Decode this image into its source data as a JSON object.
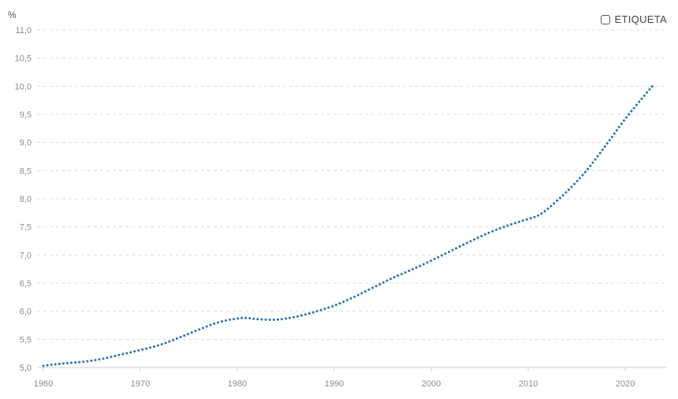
{
  "legend": {
    "label": "ETIQUETA",
    "checked": false
  },
  "chart_data": {
    "type": "line",
    "title": "",
    "ylabel": "%",
    "xlabel": "",
    "xlim": [
      1960,
      2023
    ],
    "ylim": [
      5.0,
      11.0
    ],
    "y_ticks": [
      "5,0",
      "5,5",
      "6,0",
      "6,5",
      "7,0",
      "7,5",
      "8,0",
      "8,5",
      "9,0",
      "9,5",
      "10,0",
      "10,5",
      "11,0"
    ],
    "y_tick_values": [
      5.0,
      5.5,
      6.0,
      6.5,
      7.0,
      7.5,
      8.0,
      8.5,
      9.0,
      9.5,
      10.0,
      10.5,
      11.0
    ],
    "x_ticks": [
      "1960",
      "1970",
      "1980",
      "1990",
      "2000",
      "2010",
      "2020"
    ],
    "x_tick_values": [
      1960,
      1970,
      1980,
      1990,
      2000,
      2010,
      2020
    ],
    "grid": true,
    "line_color": "#2e75b6",
    "series": [
      {
        "x": [
          1960,
          1962,
          1964,
          1966,
          1968,
          1970,
          1972,
          1974,
          1976,
          1978,
          1980,
          1981,
          1982,
          1984,
          1986,
          1988,
          1990,
          1992,
          1994,
          1996,
          1998,
          2000,
          2002,
          2004,
          2006,
          2008,
          2010,
          2011,
          2012,
          2014,
          2016,
          2018,
          2020,
          2022,
          2023
        ],
        "values": [
          5.03,
          5.07,
          5.1,
          5.15,
          5.23,
          5.31,
          5.4,
          5.53,
          5.67,
          5.8,
          5.87,
          5.88,
          5.86,
          5.85,
          5.9,
          5.99,
          6.1,
          6.25,
          6.42,
          6.59,
          6.74,
          6.9,
          7.07,
          7.24,
          7.4,
          7.53,
          7.64,
          7.7,
          7.82,
          8.13,
          8.5,
          8.95,
          9.42,
          9.84,
          10.04
        ]
      }
    ]
  }
}
